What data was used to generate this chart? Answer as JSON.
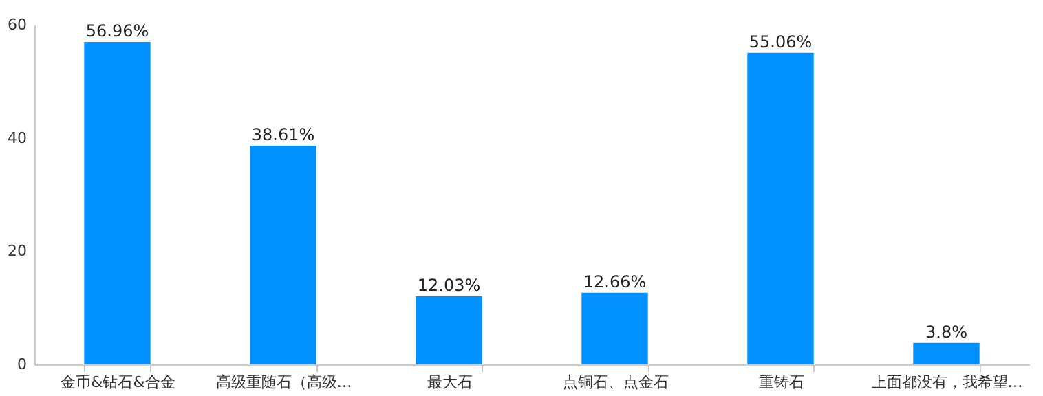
{
  "chart_data": {
    "type": "bar",
    "categories": [
      "金币&钻石&合金",
      "高级重随石（高级…",
      "最大石",
      "点铜石、点金石",
      "重铸石",
      "上面都没有，我希望…"
    ],
    "values": [
      56.96,
      38.61,
      12.03,
      12.66,
      55.06,
      3.8
    ],
    "value_labels": [
      "56.96%",
      "38.61%",
      "12.03%",
      "12.66%",
      "55.06%",
      "3.8%"
    ],
    "color": "#0090ff",
    "ylim": [
      0,
      60
    ],
    "yticks": [
      0,
      20,
      40,
      60
    ],
    "grid": false
  }
}
